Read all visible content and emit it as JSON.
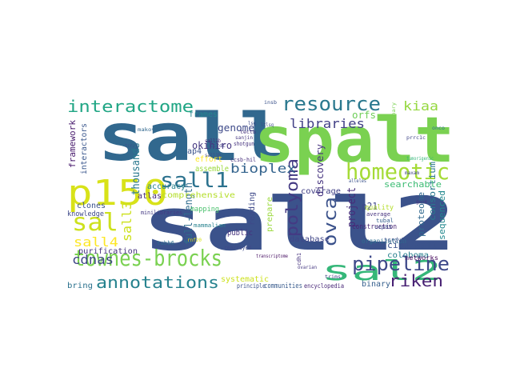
{
  "cloud": {
    "words": [
      {
        "text": "sall2",
        "color": "#3b528b"
      },
      {
        "text": "sall",
        "color": "#31688e"
      },
      {
        "text": "spalt",
        "color": "#7ad151"
      },
      {
        "text": "p150",
        "color": "#d8e219"
      },
      {
        "text": "homeotic",
        "color": "#a5db36"
      },
      {
        "text": "sal2",
        "color": "#35b779"
      },
      {
        "text": "townes-brocks",
        "color": "#7ad151"
      },
      {
        "text": "pipeline",
        "color": "#3e4989"
      },
      {
        "text": "resource",
        "color": "#2a788e"
      },
      {
        "text": "interactome",
        "color": "#21a685"
      },
      {
        "text": "sall1",
        "color": "#2c728e"
      },
      {
        "text": "sal",
        "color": "#cde11d"
      },
      {
        "text": "annotations",
        "color": "#26828e"
      },
      {
        "text": "riken",
        "color": "#482173"
      },
      {
        "text": "ovca",
        "color": "#3b528b"
      },
      {
        "text": "polyoma",
        "color": "#443a83"
      },
      {
        "text": "bioplex",
        "color": "#33638d"
      },
      {
        "text": "sall4",
        "color": "#fde725"
      },
      {
        "text": "sall3",
        "color": "#cde11d"
      },
      {
        "text": "cdnas",
        "color": "#404688"
      },
      {
        "text": "libraries",
        "color": "#424086"
      },
      {
        "text": "kiaa",
        "color": "#95d840"
      },
      {
        "text": "project",
        "color": "#472d7b"
      },
      {
        "text": "thousands",
        "color": "#2a788e"
      },
      {
        "text": "full-length",
        "color": "#2f6c8e"
      },
      {
        "text": "okihiro",
        "color": "#453781"
      },
      {
        "text": "genome",
        "color": "#3e4a89"
      },
      {
        "text": "discovery",
        "color": "#46337f"
      },
      {
        "text": "orfs",
        "color": "#6ece58"
      },
      {
        "text": "p21",
        "color": "#3f4889"
      },
      {
        "text": "consortium",
        "color": "#2a788e"
      },
      {
        "text": "searchable",
        "color": "#3dbc74"
      },
      {
        "text": "proteome",
        "color": "#31688e"
      },
      {
        "text": "sequenced",
        "color": "#23898e"
      },
      {
        "text": "cip1/waf1",
        "color": "#3b528b"
      },
      {
        "text": "coloboma",
        "color": "#277f8e"
      },
      {
        "text": "networks",
        "color": "#46085c"
      },
      {
        "text": "framework",
        "color": "#481b6d"
      },
      {
        "text": "interactors",
        "color": "#39568c"
      },
      {
        "text": "frames",
        "color": "#25858e"
      },
      {
        "text": "effort",
        "color": "#fde725"
      },
      {
        "text": "assemble",
        "color": "#9bd93c"
      },
      {
        "text": "ap4",
        "color": "#3b528b"
      },
      {
        "text": "accuracy",
        "color": "#26828e"
      },
      {
        "text": "comprehensive",
        "color": "#b5de2b"
      },
      {
        "text": "atlas",
        "color": "#472878"
      },
      {
        "text": "clones",
        "color": "#3b528b"
      },
      {
        "text": "knowledge",
        "color": "#3e4989"
      },
      {
        "text": "purification",
        "color": "#46337f"
      },
      {
        "text": "bring",
        "color": "#2c728e"
      },
      {
        "text": "mapping",
        "color": "#4ac16d"
      },
      {
        "text": "systematic",
        "color": "#cde11d"
      },
      {
        "text": "public",
        "color": "#46337f"
      },
      {
        "text": "reading",
        "color": "#3e4989"
      },
      {
        "text": "prepare",
        "color": "#9bd93c"
      },
      {
        "text": "coverage",
        "color": "#424086"
      },
      {
        "text": "database",
        "color": "#404688"
      },
      {
        "text": "construction",
        "color": "#482475"
      },
      {
        "text": "quality",
        "color": "#b5de2b"
      },
      {
        "text": "binary",
        "color": "#355f8d"
      },
      {
        "text": "organization",
        "color": "#2f6c8e"
      },
      {
        "text": "communities",
        "color": "#375a8c"
      },
      {
        "text": "encyclopedia",
        "color": "#482878"
      },
      {
        "text": "principle",
        "color": "#3b528b"
      },
      {
        "text": "transcriptome",
        "color": "#471063"
      },
      {
        "text": "rearrayed",
        "color": "#3e4989"
      },
      {
        "text": "tubal",
        "color": "#355f8d"
      },
      {
        "text": "cep85",
        "color": "#3e4a89"
      },
      {
        "text": "average",
        "color": "#46337f"
      },
      {
        "text": "tcrdv3",
        "color": "#3b528b"
      },
      {
        "text": "tubb6",
        "color": "#2f6c8e"
      },
      {
        "text": "mammalian",
        "color": "#26828e"
      },
      {
        "text": "minilibraries",
        "color": "#443983"
      },
      {
        "text": "shotgun",
        "color": "#46337f"
      },
      {
        "text": "ccsb-hil",
        "color": "#472d7b"
      },
      {
        "text": "sanjin",
        "color": "#453781"
      },
      {
        "text": "tcrdc",
        "color": "#424086"
      },
      {
        "text": "lsg",
        "color": "#3e4989"
      },
      {
        "text": "tectb",
        "color": "#46337f"
      },
      {
        "text": "prrc1c",
        "color": "#404688"
      },
      {
        "text": "insb",
        "color": "#3b528b"
      },
      {
        "text": "makova",
        "color": "#31688e"
      },
      {
        "text": "sall1b",
        "color": "#3e4989"
      },
      {
        "text": "sall2b",
        "color": "#482878"
      },
      {
        "text": "onco",
        "color": "#2c728e"
      },
      {
        "text": "trims",
        "color": "#424086"
      },
      {
        "text": "cdh1",
        "color": "#46337f"
      },
      {
        "text": "evolutionary",
        "color": "#7ad151"
      },
      {
        "text": "tcraj",
        "color": "#3b528b"
      },
      {
        "text": "rnf20",
        "color": "#d8e219"
      },
      {
        "text": "ovarian",
        "color": "#453781"
      },
      {
        "text": "ltlsq",
        "color": "#3e4989"
      },
      {
        "text": "maxam",
        "color": "#404688"
      },
      {
        "text": "tumorigenic",
        "color": "#35b779"
      },
      {
        "text": "gene",
        "color": "#46337f"
      },
      {
        "text": "alleles",
        "color": "#3b528b"
      }
    ]
  }
}
